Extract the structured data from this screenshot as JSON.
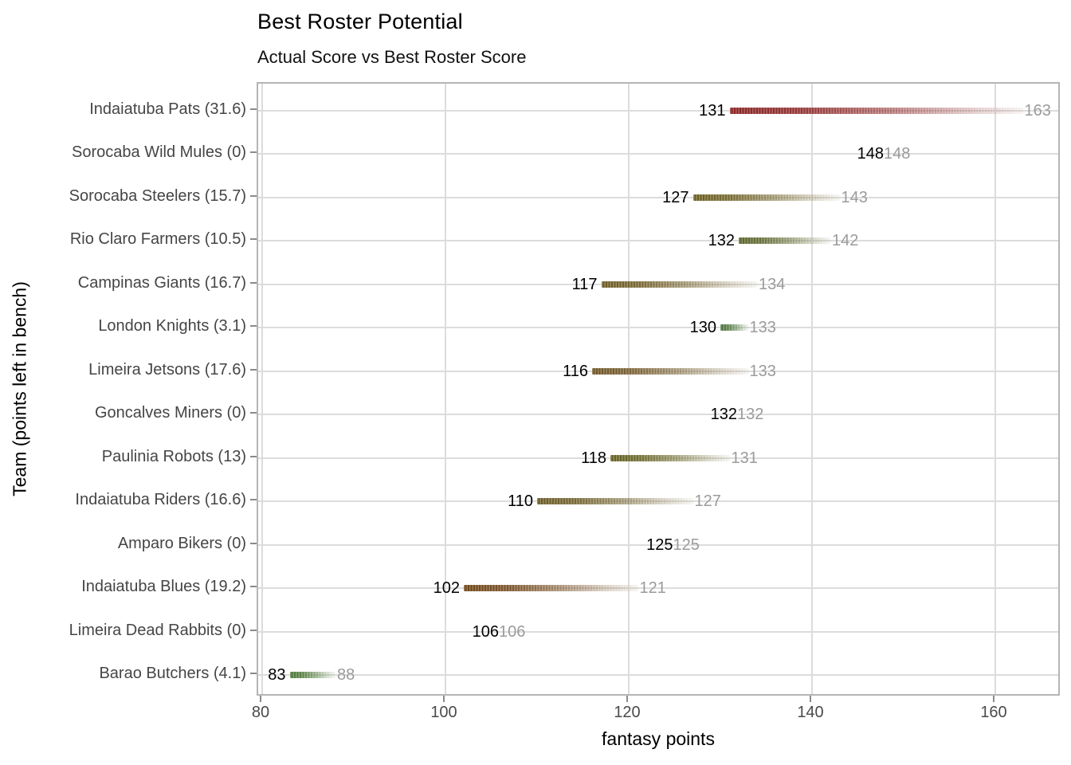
{
  "title": "Best Roster Potential",
  "subtitle": "Actual Score vs Best Roster Score",
  "chart_data": {
    "type": "bar",
    "subtype": "dumbbell-gradient",
    "title": "Best Roster Potential",
    "subtitle": "Actual Score vs Best Roster Score",
    "xlabel": "fantasy points",
    "ylabel": "Team (points left in bench)",
    "x_ticks": [
      80,
      100,
      120,
      140,
      160
    ],
    "xlim": [
      79.5,
      167
    ],
    "grid": true,
    "actual_label_color": "#000000",
    "best_label_color": "#9b9b9b",
    "gridline_color": "#dcdcdc",
    "panel_border_color": "#b5b5b5",
    "rows": [
      {
        "team": "Indaiatuba Pats",
        "bench": 31.6,
        "label": "Indaiatuba Pats (31.6)",
        "actual": 131,
        "best": 163,
        "color": "#8a2323"
      },
      {
        "team": "Sorocaba Wild Mules",
        "bench": 0,
        "label": "Sorocaba Wild Mules (0)",
        "actual": 148,
        "best": 148,
        "color": null
      },
      {
        "team": "Sorocaba Steelers",
        "bench": 15.7,
        "label": "Sorocaba Steelers (15.7)",
        "actual": 127,
        "best": 143,
        "color": "#6b5e20"
      },
      {
        "team": "Rio Claro Farmers",
        "bench": 10.5,
        "label": "Rio Claro Farmers (10.5)",
        "actual": 132,
        "best": 142,
        "color": "#5a6429"
      },
      {
        "team": "Campinas Giants",
        "bench": 16.7,
        "label": "Campinas Giants (16.7)",
        "actual": 117,
        "best": 134,
        "color": "#6e5b24"
      },
      {
        "team": "London Knights",
        "bench": 3.1,
        "label": "London Knights (3.1)",
        "actual": 130,
        "best": 133,
        "color": "#4a7239"
      },
      {
        "team": "Limeira Jetsons",
        "bench": 17.6,
        "label": "Limeira Jetsons (17.6)",
        "actual": 116,
        "best": 133,
        "color": "#6f5524"
      },
      {
        "team": "Goncalves Miners",
        "bench": 0,
        "label": "Goncalves Miners (0)",
        "actual": 132,
        "best": 132,
        "color": null
      },
      {
        "team": "Paulinia Robots",
        "bench": 13,
        "label": "Paulinia Robots (13)",
        "actual": 118,
        "best": 131,
        "color": "#63601f"
      },
      {
        "team": "Indaiatuba Riders",
        "bench": 16.6,
        "label": "Indaiatuba Riders (16.6)",
        "actual": 110,
        "best": 127,
        "color": "#6b5a24"
      },
      {
        "team": "Amparo Bikers",
        "bench": 0,
        "label": "Amparo Bikers (0)",
        "actual": 125,
        "best": 125,
        "color": null
      },
      {
        "team": "Indaiatuba Blues",
        "bench": 19.2,
        "label": "Indaiatuba Blues (19.2)",
        "actual": 102,
        "best": 121,
        "color": "#6f4517"
      },
      {
        "team": "Limeira Dead Rabbits",
        "bench": 0,
        "label": "Limeira Dead Rabbits (0)",
        "actual": 106,
        "best": 106,
        "color": null
      },
      {
        "team": "Barao Butchers",
        "bench": 4.1,
        "label": "Barao Butchers (4.1)",
        "actual": 83,
        "best": 88,
        "color": "#4d7837"
      }
    ]
  }
}
